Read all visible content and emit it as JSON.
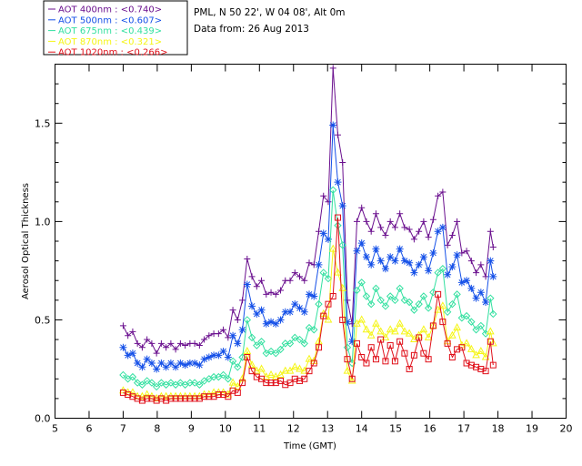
{
  "info": {
    "site": "PML, N 50 22', W 04 08', Alt 0m",
    "date": "Data from: 26 Aug 2013"
  },
  "chart_data": {
    "type": "line",
    "title": "",
    "xlabel": "Time (GMT)",
    "ylabel": "Aerosol Optical Thickness",
    "xlim": [
      5,
      20
    ],
    "ylim": [
      0,
      1.8
    ],
    "xticks": [
      5,
      6,
      7,
      8,
      9,
      10,
      11,
      12,
      13,
      14,
      15,
      16,
      17,
      18,
      19,
      20
    ],
    "yticks": [
      0.0,
      0.5,
      1.0,
      1.5
    ],
    "ytick_labels": [
      "0.0",
      "0.5",
      "1.0",
      "1.5"
    ],
    "x": [
      7.0,
      7.14,
      7.28,
      7.42,
      7.56,
      7.7,
      7.84,
      7.98,
      8.12,
      8.26,
      8.4,
      8.54,
      8.68,
      8.82,
      8.96,
      9.1,
      9.24,
      9.38,
      9.52,
      9.66,
      9.8,
      9.94,
      10.08,
      10.22,
      10.36,
      10.5,
      10.64,
      10.78,
      10.92,
      11.06,
      11.2,
      11.34,
      11.48,
      11.62,
      11.76,
      11.9,
      12.04,
      12.18,
      12.32,
      12.46,
      12.6,
      12.74,
      12.88,
      13.02,
      13.16,
      13.3,
      13.44,
      13.58,
      13.72,
      13.86,
      14.0,
      14.14,
      14.28,
      14.42,
      14.56,
      14.7,
      14.84,
      14.98,
      15.12,
      15.26,
      15.4,
      15.54,
      15.68,
      15.82,
      15.96,
      16.1,
      16.24,
      16.38,
      16.52,
      16.66,
      16.8,
      16.94,
      17.08,
      17.22,
      17.36,
      17.5,
      17.64,
      17.78,
      17.86
    ],
    "series": [
      {
        "name": "AOT  400nm",
        "mean": "<0.740>",
        "color": "#6a0f8e",
        "marker": "plus",
        "values": [
          0.47,
          0.42,
          0.44,
          0.38,
          0.36,
          0.4,
          0.38,
          0.33,
          0.38,
          0.36,
          0.38,
          0.35,
          0.38,
          0.37,
          0.38,
          0.38,
          0.37,
          0.4,
          0.42,
          0.43,
          0.43,
          0.45,
          0.41,
          0.55,
          0.5,
          0.6,
          0.81,
          0.72,
          0.67,
          0.7,
          0.63,
          0.64,
          0.63,
          0.65,
          0.7,
          0.7,
          0.74,
          0.72,
          0.7,
          0.79,
          0.78,
          0.95,
          1.13,
          1.1,
          1.78,
          1.44,
          1.3,
          0.6,
          0.48,
          1.0,
          1.07,
          1.0,
          0.95,
          1.04,
          0.97,
          0.93,
          1.0,
          0.97,
          1.04,
          0.97,
          0.96,
          0.91,
          0.95,
          1.0,
          0.92,
          1.01,
          1.13,
          1.15,
          0.88,
          0.93,
          1.0,
          0.84,
          0.85,
          0.8,
          0.74,
          0.78,
          0.72,
          0.95,
          0.87
        ]
      },
      {
        "name": "AOT  500nm",
        "mean": "<0.607>",
        "color": "#1550e8",
        "marker": "asterisk",
        "values": [
          0.36,
          0.32,
          0.33,
          0.28,
          0.26,
          0.3,
          0.28,
          0.25,
          0.28,
          0.26,
          0.28,
          0.26,
          0.28,
          0.27,
          0.28,
          0.28,
          0.27,
          0.3,
          0.31,
          0.32,
          0.32,
          0.34,
          0.31,
          0.42,
          0.38,
          0.45,
          0.68,
          0.57,
          0.53,
          0.55,
          0.48,
          0.49,
          0.48,
          0.5,
          0.54,
          0.54,
          0.58,
          0.56,
          0.54,
          0.63,
          0.62,
          0.78,
          0.94,
          0.91,
          1.49,
          1.2,
          1.08,
          0.49,
          0.39,
          0.85,
          0.89,
          0.82,
          0.78,
          0.86,
          0.8,
          0.76,
          0.82,
          0.8,
          0.86,
          0.8,
          0.79,
          0.74,
          0.78,
          0.82,
          0.75,
          0.84,
          0.95,
          0.97,
          0.73,
          0.77,
          0.83,
          0.69,
          0.7,
          0.66,
          0.61,
          0.64,
          0.59,
          0.8,
          0.72
        ]
      },
      {
        "name": "AOT  675nm",
        "mean": "<0.439>",
        "color": "#33e0a0",
        "marker": "diamond",
        "values": [
          0.22,
          0.2,
          0.21,
          0.18,
          0.17,
          0.19,
          0.18,
          0.16,
          0.18,
          0.17,
          0.18,
          0.17,
          0.18,
          0.17,
          0.18,
          0.18,
          0.17,
          0.19,
          0.2,
          0.21,
          0.21,
          0.22,
          0.2,
          0.29,
          0.26,
          0.31,
          0.5,
          0.41,
          0.37,
          0.39,
          0.33,
          0.34,
          0.33,
          0.35,
          0.38,
          0.38,
          0.41,
          0.4,
          0.38,
          0.46,
          0.45,
          0.58,
          0.74,
          0.71,
          1.16,
          0.98,
          0.88,
          0.36,
          0.28,
          0.65,
          0.69,
          0.62,
          0.58,
          0.66,
          0.6,
          0.57,
          0.62,
          0.6,
          0.66,
          0.6,
          0.59,
          0.55,
          0.58,
          0.62,
          0.56,
          0.64,
          0.74,
          0.76,
          0.54,
          0.58,
          0.63,
          0.51,
          0.52,
          0.49,
          0.45,
          0.47,
          0.43,
          0.61,
          0.53
        ]
      },
      {
        "name": "AOT  870nm",
        "mean": "<0.321>",
        "color": "#f5f516",
        "marker": "triangle",
        "values": [
          0.14,
          0.13,
          0.13,
          0.11,
          0.11,
          0.12,
          0.11,
          0.1,
          0.11,
          0.11,
          0.11,
          0.11,
          0.11,
          0.11,
          0.11,
          0.11,
          0.11,
          0.12,
          0.12,
          0.13,
          0.13,
          0.13,
          0.12,
          0.18,
          0.16,
          0.2,
          0.34,
          0.27,
          0.24,
          0.25,
          0.21,
          0.22,
          0.21,
          0.22,
          0.24,
          0.24,
          0.26,
          0.25,
          0.24,
          0.3,
          0.29,
          0.39,
          0.53,
          0.5,
          0.86,
          0.74,
          0.66,
          0.24,
          0.19,
          0.48,
          0.5,
          0.45,
          0.42,
          0.48,
          0.44,
          0.41,
          0.45,
          0.44,
          0.48,
          0.44,
          0.43,
          0.4,
          0.42,
          0.45,
          0.41,
          0.47,
          0.55,
          0.57,
          0.39,
          0.42,
          0.46,
          0.37,
          0.38,
          0.35,
          0.32,
          0.34,
          0.31,
          0.44,
          0.38
        ]
      },
      {
        "name": "AOT 1020nm",
        "mean": "<0.266>",
        "color": "#e0101a",
        "marker": "square",
        "values": [
          0.13,
          0.12,
          0.11,
          0.1,
          0.09,
          0.1,
          0.1,
          0.09,
          0.1,
          0.09,
          0.1,
          0.1,
          0.1,
          0.1,
          0.1,
          0.1,
          0.1,
          0.11,
          0.11,
          0.11,
          0.12,
          0.12,
          0.11,
          0.14,
          0.13,
          0.18,
          0.31,
          0.24,
          0.21,
          0.2,
          0.18,
          0.18,
          0.18,
          0.19,
          0.17,
          0.18,
          0.2,
          0.19,
          0.2,
          0.24,
          0.28,
          0.36,
          0.52,
          0.58,
          0.62,
          1.02,
          0.5,
          0.3,
          0.2,
          0.38,
          0.31,
          0.28,
          0.36,
          0.3,
          0.4,
          0.29,
          0.37,
          0.29,
          0.39,
          0.33,
          0.25,
          0.32,
          0.41,
          0.33,
          0.3,
          0.47,
          0.63,
          0.49,
          0.38,
          0.31,
          0.35,
          0.36,
          0.28,
          0.27,
          0.26,
          0.25,
          0.24,
          0.39,
          0.27
        ]
      }
    ]
  }
}
